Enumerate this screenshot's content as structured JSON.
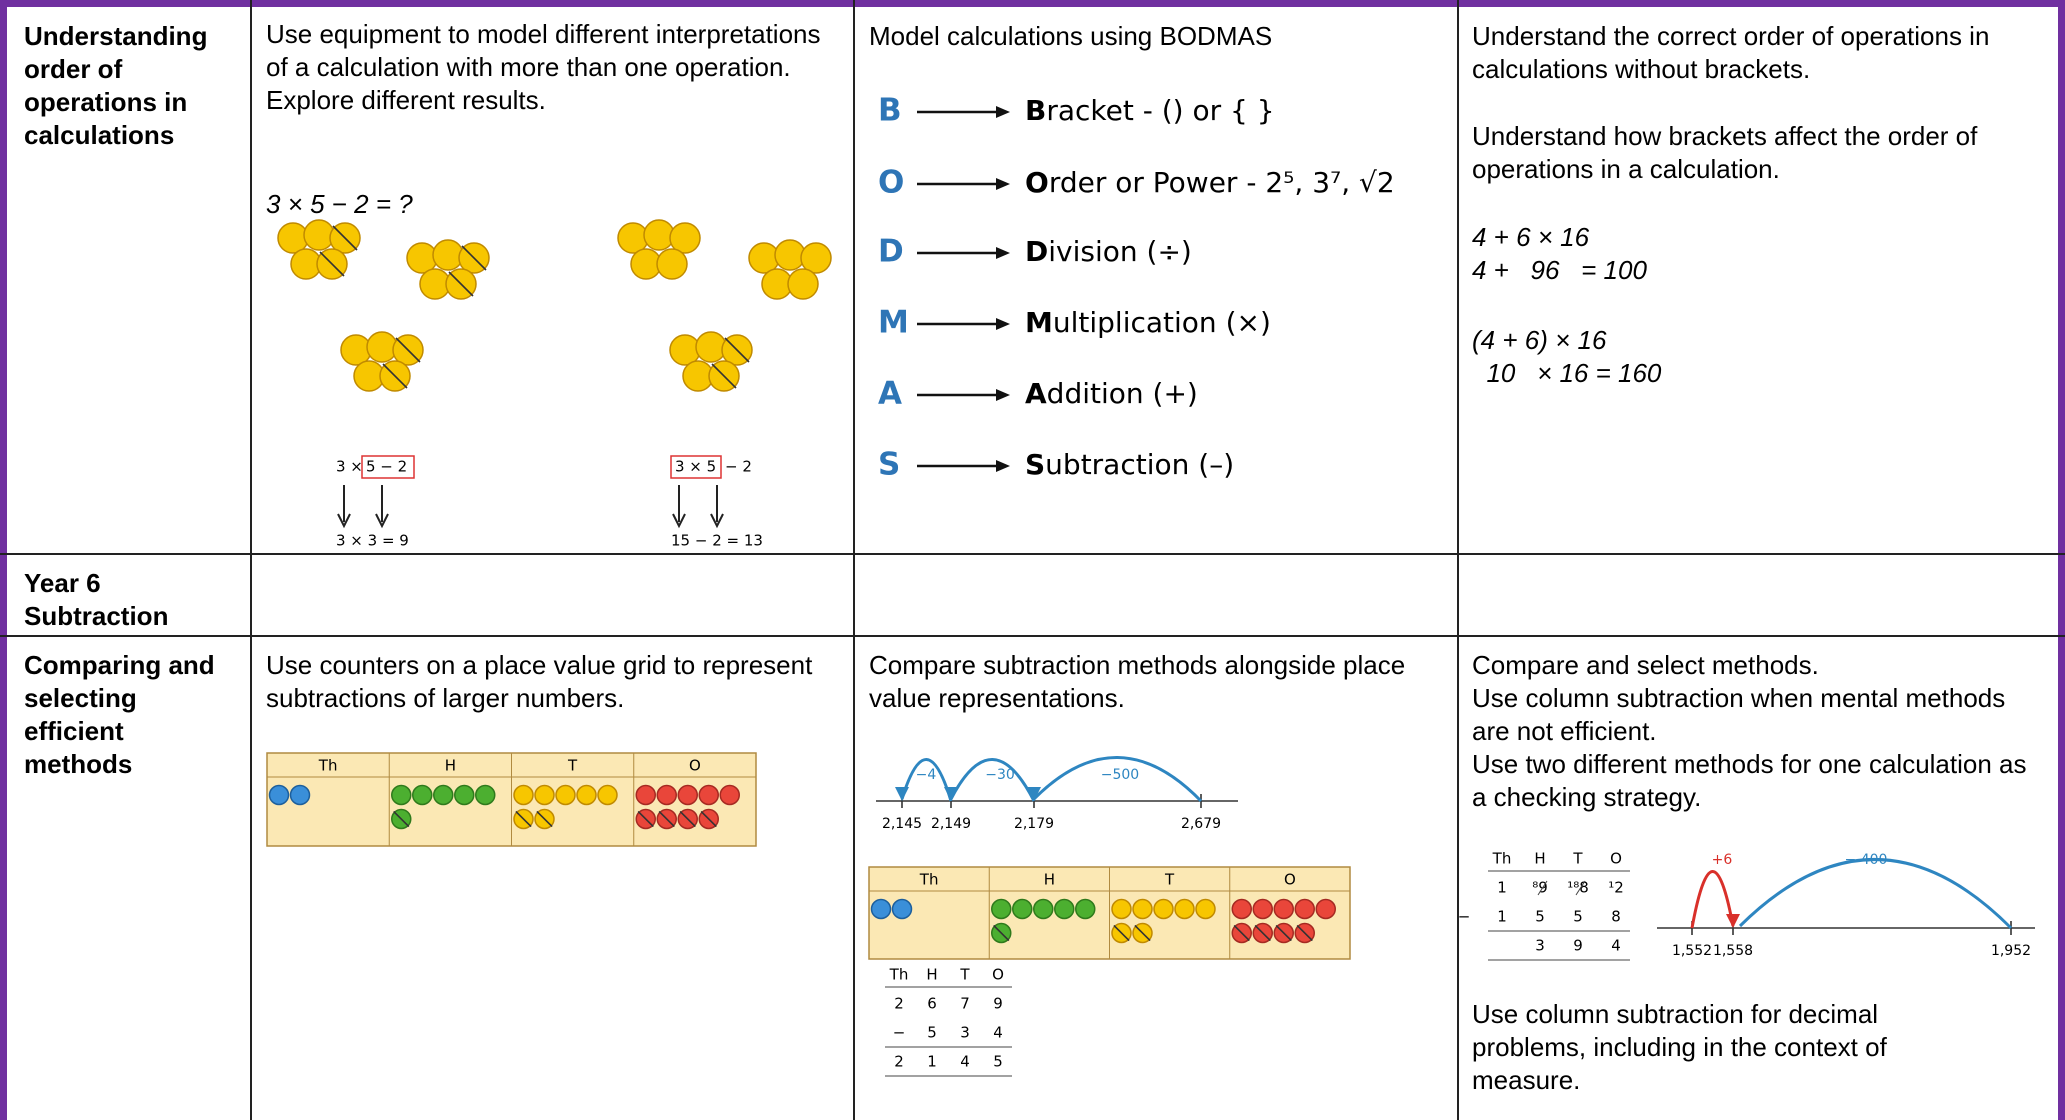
{
  "table": {
    "rows": [
      {
        "heading": "Understanding order of operations in calculations",
        "concrete": {
          "text": "Use equipment to model different interpretations of a calculation with more than one operation. Explore different results.",
          "question": "3 × 5 − 2 = ?",
          "left": {
            "outside": "3 ×",
            "boxed": "5 − 2",
            "result": "3  ×  3 = 9"
          },
          "right": {
            "boxed": "3 × 5",
            "outside": "− 2",
            "result": "15  −  2 = 13"
          }
        },
        "pictorial": {
          "text": "Model calculations using BODMAS",
          "steps": [
            {
              "letter": "B",
              "word": "Bracket - () or { }"
            },
            {
              "letter": "O",
              "word": "Order or Power - 2⁵, 3⁷, √2"
            },
            {
              "letter": "D",
              "word": "Division (÷)"
            },
            {
              "letter": "M",
              "word": "Multiplication (×)"
            },
            {
              "letter": "A",
              "word": "Addition (+)"
            },
            {
              "letter": "S",
              "word": "Subtraction (–)"
            }
          ]
        },
        "abstract": {
          "paragraphs": [
            "Understand the correct order of operations in calculations without brackets.",
            "Understand how brackets affect the order of operations in a calculation."
          ],
          "examples": [
            [
              "4 + 6 × 16",
              "4 +   96   = 100"
            ],
            [
              "(4 + 6) × 16",
              "  10   × 16 = 160"
            ]
          ]
        }
      },
      {
        "heading": "Year 6 Subtraction"
      },
      {
        "heading": "Comparing and selecting efficient methods",
        "concrete": {
          "text": "Use counters on a place value grid to represent subtractions of larger numbers.",
          "grid": [
            "Th",
            "H",
            "T",
            "O"
          ]
        },
        "pictorial": {
          "text": "Compare subtraction methods alongside place value representations.",
          "number_line": {
            "jumps": [
              "−4",
              "−30",
              "−500"
            ],
            "marks": [
              "2,145",
              "2,149",
              "2,179",
              "2,679"
            ]
          },
          "grid": [
            "Th",
            "H",
            "T",
            "O"
          ],
          "column": {
            "header": [
              "Th",
              "H",
              "T",
              "O"
            ],
            "rows": [
              [
                "2",
                "6",
                "7",
                "9"
              ],
              [
                "−",
                "5",
                "3",
                "4"
              ],
              [
                "2",
                "1",
                "4",
                "5"
              ]
            ]
          }
        },
        "abstract": {
          "paragraphs": [
            "Compare and select methods.",
            "Use column subtraction when mental methods are not efficient.",
            "Use two different methods for one calculation as a checking strategy."
          ],
          "column": {
            "header": [
              "Th",
              "H",
              "T",
              "O"
            ],
            "rows": [
              [
                "1",
                "⁸9",
                "¹⁸8",
                "¹2"
              ],
              [
                "−",
                "1",
                "5",
                "5",
                "8"
              ],
              [
                "3",
                "9",
                "4"
              ]
            ]
          },
          "number_line": {
            "jumps": [
              "+6",
              "− 400"
            ],
            "marks": [
              "1,552",
              "1,558",
              "1,952"
            ]
          },
          "closing": "Use column subtraction for decimal problems, including in the context of measure."
        }
      }
    ]
  }
}
